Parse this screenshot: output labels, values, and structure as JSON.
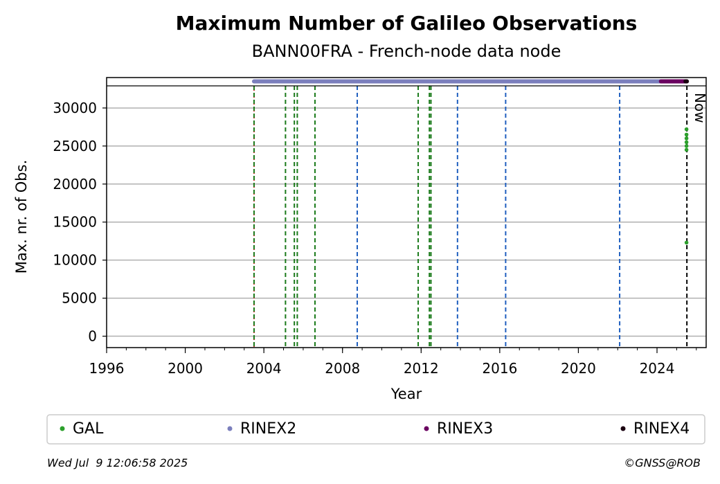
{
  "chart_data": {
    "type": "scatter",
    "title": "Maximum Number of Galileo Observations",
    "subtitle": "BANN00FRA - French-node data node",
    "xlabel": "Year",
    "ylabel": "Max. nr. of Obs.",
    "xlim": [
      1996.0,
      2026.5
    ],
    "ylim": [
      -1500,
      34000
    ],
    "x_ticks": [
      1996,
      2000,
      2004,
      2008,
      2012,
      2016,
      2020,
      2024
    ],
    "y_ticks": [
      0,
      5000,
      10000,
      15000,
      20000,
      25000,
      30000
    ],
    "grid": "horizontal",
    "legend_placement": "bottom",
    "now_label": "Now",
    "now_x": 2025.52,
    "series": [
      {
        "name": "GAL",
        "color": "#2ca02c",
        "points": [
          [
            2025.5,
            12300
          ],
          [
            2025.5,
            24500
          ],
          [
            2025.5,
            25000
          ],
          [
            2025.5,
            25500
          ],
          [
            2025.5,
            26000
          ],
          [
            2025.5,
            26500
          ],
          [
            2025.5,
            27200
          ]
        ]
      },
      {
        "name": "RINEX2",
        "color": "#7b7fbd",
        "x_range": [
          2003.5,
          2025.5
        ],
        "y": 33500
      },
      {
        "name": "RINEX3",
        "color": "#6a0060",
        "x_range": [
          2024.2,
          2025.5
        ],
        "y": 33500
      },
      {
        "name": "RINEX4",
        "color": "#1a0010",
        "x_range": [
          2025.45,
          2025.52
        ],
        "y": 33500
      }
    ],
    "vertical_lines": [
      {
        "x": 2003.5,
        "color": "#d62728",
        "style": "dotted"
      },
      {
        "x": 2003.5,
        "color": "#1a7a1a",
        "style": "dashed"
      },
      {
        "x": 2005.1,
        "color": "#1a7a1a",
        "style": "dashed"
      },
      {
        "x": 2005.55,
        "color": "#1a7a1a",
        "style": "dashed"
      },
      {
        "x": 2005.7,
        "color": "#1a7a1a",
        "style": "dashed"
      },
      {
        "x": 2006.6,
        "color": "#1a7a1a",
        "style": "dashed"
      },
      {
        "x": 2008.75,
        "color": "#1f5fbf",
        "style": "dashed"
      },
      {
        "x": 2011.85,
        "color": "#1a7a1a",
        "style": "dashed"
      },
      {
        "x": 2012.42,
        "color": "#1a7a1a",
        "style": "dashed"
      },
      {
        "x": 2012.5,
        "color": "#1a7a1a",
        "style": "dashed"
      },
      {
        "x": 2013.85,
        "color": "#1f5fbf",
        "style": "dashed"
      },
      {
        "x": 2016.3,
        "color": "#1f5fbf",
        "style": "dashed"
      },
      {
        "x": 2022.1,
        "color": "#1f5fbf",
        "style": "dashed"
      },
      {
        "x": 2025.52,
        "color": "#000000",
        "style": "dashed"
      }
    ]
  },
  "footer": {
    "timestamp": "Wed Jul  9 12:06:58 2025",
    "copyright": "©GNSS@ROB"
  }
}
